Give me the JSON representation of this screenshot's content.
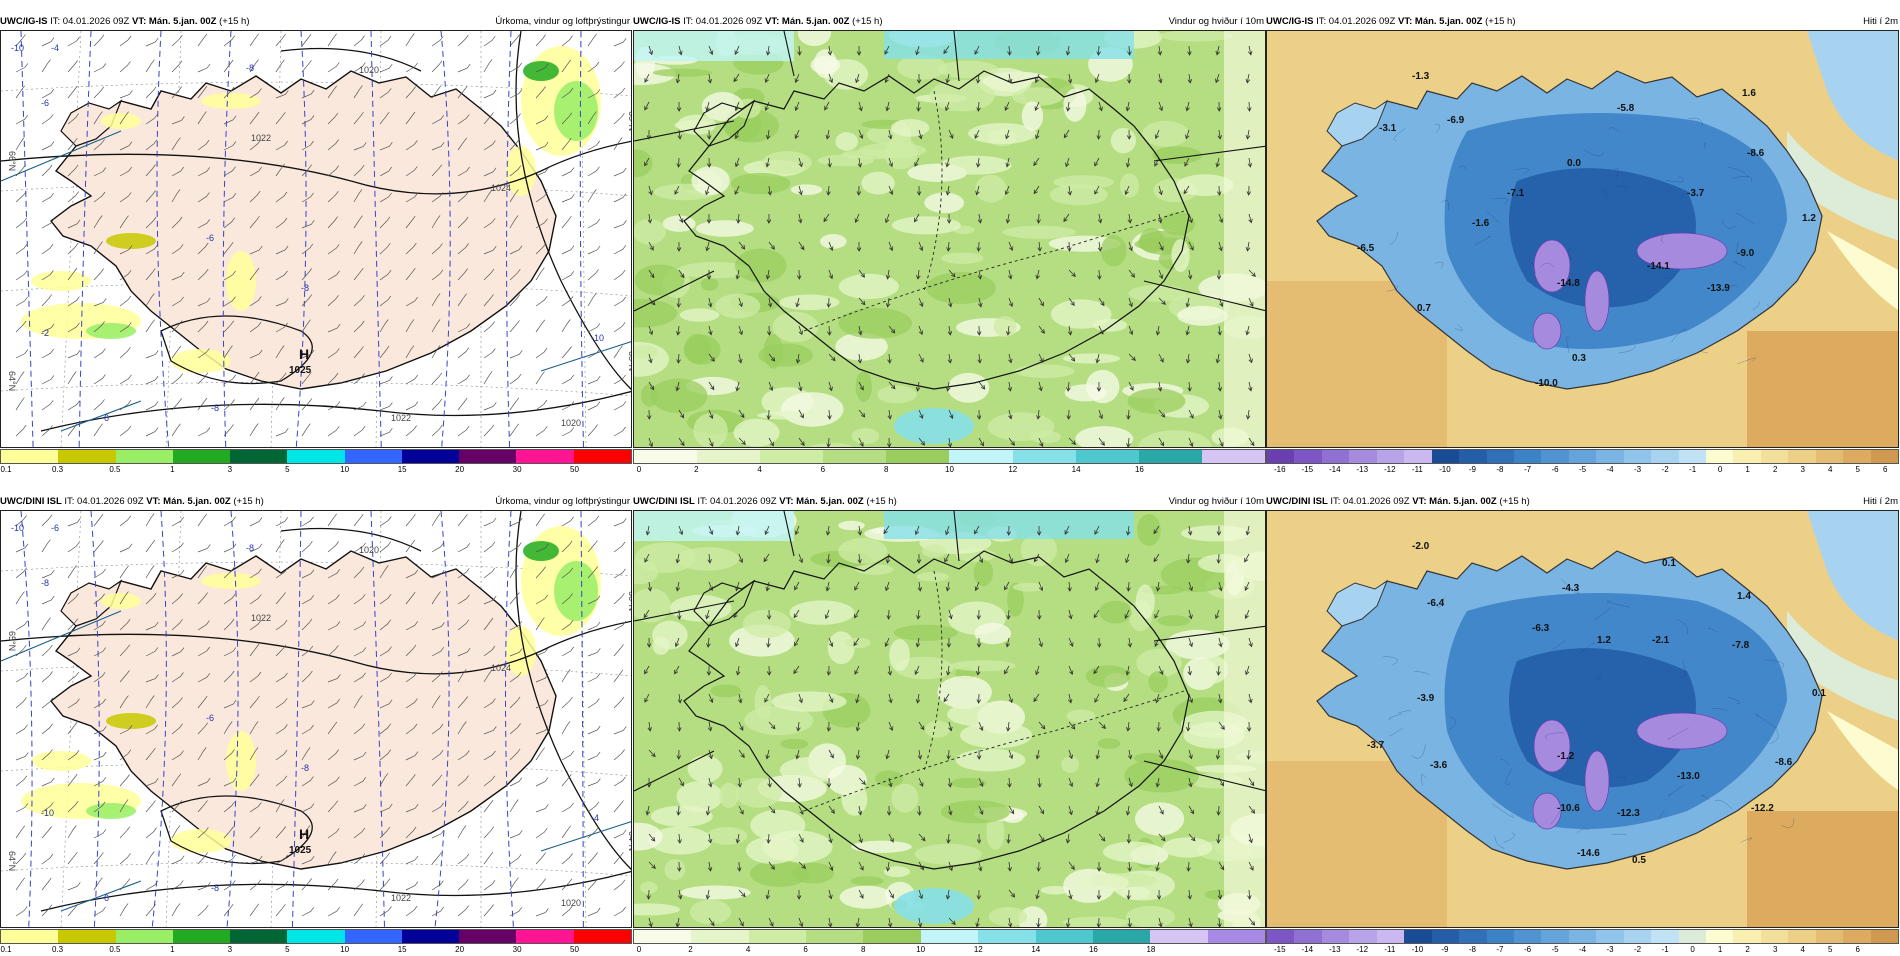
{
  "rows": [
    {
      "panels": [
        {
          "type": "precip",
          "model": "UWC/IG-IS",
          "it": "IT: 04.01.2026 09Z",
          "vt": "VT: Mán. 5.jan. 00Z",
          "lead": "(+15 h)",
          "title": "Úrkoma, vindur og loftþrýstingur",
          "high": {
            "letter": "H",
            "value": "1025"
          },
          "isobars": [
            "1020",
            "1022",
            "1024",
            "1022",
            "1020"
          ],
          "temp_isolines": [
            "-4",
            "-6",
            "-8",
            "-8",
            "-6",
            "-2",
            "-10",
            "-8",
            "-6",
            "-10"
          ],
          "lat_labels": [
            "65°N",
            "64°N",
            "66°N",
            "65°N"
          ],
          "legend": {
            "ticks": [
              "0.1",
              "0.3",
              "0.5",
              "1",
              "3",
              "5",
              "10",
              "15",
              "20",
              "30",
              "50"
            ],
            "colors": [
              "#ffff99",
              "#c8c800",
              "#99ee66",
              "#22aa22",
              "#006633",
              "#00e5e5",
              "#3366ff",
              "#000099",
              "#660066",
              "#ff1493",
              "#ff0000"
            ]
          }
        },
        {
          "type": "wind",
          "model": "UWC/IG-IS",
          "it": "IT: 04.01.2026 09Z",
          "vt": "VT: Mán. 5.jan. 00Z",
          "lead": "(+15 h)",
          "title": "Vindur og hviður í 10m",
          "legend": {
            "ticks": [
              "0",
              "2",
              "4",
              "6",
              "8",
              "10",
              "12",
              "14",
              "16"
            ],
            "colors": [
              "#f7fbe8",
              "#e6f5c9",
              "#cfeca5",
              "#b5de82",
              "#9acd5e",
              "#c2f5f7",
              "#86e0e8",
              "#4ec7cf",
              "#2aa8a8",
              "#d6c4f5"
            ]
          }
        },
        {
          "type": "temp",
          "model": "UWC/IG-IS",
          "it": "IT: 04.01.2026 09Z",
          "vt": "VT: Mán. 5.jan. 00Z",
          "lead": "(+15 h)",
          "title": "Hiti í 2m",
          "values": [
            "-1.3",
            "-6.9",
            "-3.1",
            "-5.8",
            "1.6",
            "-8.6",
            "0.0",
            "-7.1",
            "-3.7",
            "1.2",
            "-1.6",
            "-9.0",
            "-6.5",
            "-14.1",
            "-13.9",
            "-14.8",
            "0.7",
            "0.3",
            "-10.0"
          ],
          "legend": {
            "ticks": [
              "-16",
              "-15",
              "-14",
              "-13",
              "-12",
              "-11",
              "-10",
              "-9",
              "-8",
              "-7",
              "-6",
              "-5",
              "-4",
              "-3",
              "-2",
              "-1",
              "0",
              "1",
              "2",
              "3",
              "4",
              "5",
              "6"
            ],
            "colors": [
              "#6a3fb0",
              "#7d55c4",
              "#9070d2",
              "#a58ade",
              "#b9a3e8",
              "#cbb8f0",
              "#1a4c96",
              "#245ea8",
              "#2f70b8",
              "#3c82c6",
              "#4f93d0",
              "#64a4da",
              "#7ab4e2",
              "#90c4ea",
              "#a8d3f0",
              "#c0e2f4",
              "#fdfbd0",
              "#f8efb0",
              "#f2e09a",
              "#ecd088",
              "#e4bd72",
              "#dcab60",
              "#d09950"
            ]
          }
        }
      ]
    },
    {
      "panels": [
        {
          "type": "precip",
          "model": "UWC/DINI ISL",
          "it": "IT: 04.01.2026 09Z",
          "vt": "VT: Mán. 5.jan. 00Z",
          "lead": "(+15 h)",
          "title": "Úrkoma, vindur og loftþrýstingur",
          "high": {
            "letter": "H",
            "value": "1025"
          },
          "isobars": [
            "1020",
            "1022",
            "1024",
            "1022",
            "1020"
          ],
          "temp_isolines": [
            "-6",
            "-8",
            "-8",
            "-8",
            "-6",
            "-10",
            "-4",
            "-8",
            "-6",
            "-10"
          ],
          "lat_labels": [
            "66°N",
            "64°N",
            "65°N",
            "64°N"
          ],
          "legend": {
            "ticks": [
              "0.1",
              "0.3",
              "0.5",
              "1",
              "3",
              "5",
              "10",
              "15",
              "20",
              "30",
              "50"
            ],
            "colors": [
              "#ffff99",
              "#c8c800",
              "#99ee66",
              "#22aa22",
              "#006633",
              "#00e5e5",
              "#3366ff",
              "#000099",
              "#660066",
              "#ff1493",
              "#ff0000"
            ]
          }
        },
        {
          "type": "wind",
          "model": "UWC/DINI ISL",
          "it": "IT: 04.01.2026 09Z",
          "vt": "VT: Mán. 5.jan. 00Z",
          "lead": "(+15 h)",
          "title": "Vindur og hviður í 10m",
          "legend": {
            "ticks": [
              "0",
              "2",
              "4",
              "6",
              "8",
              "10",
              "12",
              "14",
              "16",
              "18"
            ],
            "colors": [
              "#f7fbe8",
              "#e6f5c9",
              "#cfeca5",
              "#b5de82",
              "#9acd5e",
              "#c2f5f7",
              "#86e0e8",
              "#4ec7cf",
              "#2aa8a8",
              "#d6c4f5",
              "#a88ae6"
            ]
          }
        },
        {
          "type": "temp",
          "model": "UWC/DINI ISL",
          "it": "IT: 04.01.2026 09Z",
          "vt": "VT: Mán. 5.jan. 00Z",
          "lead": "(+15 h)",
          "title": "Hiti í 2m",
          "values": [
            "-2.0",
            "-6.4",
            "-4.3",
            "0.1",
            "1.4",
            "-6.3",
            "1.2",
            "-2.1",
            "-7.8",
            "-3.9",
            "0.1",
            "-3.7",
            "-3.6",
            "-1.2",
            "-13.0",
            "-8.6",
            "-10.6",
            "-12.3",
            "-12.2",
            "-14.6",
            "0.5"
          ],
          "legend": {
            "ticks": [
              "-15",
              "-14",
              "-13",
              "-12",
              "-11",
              "-10",
              "-9",
              "-8",
              "-7",
              "-6",
              "-5",
              "-4",
              "-3",
              "-2",
              "-1",
              "0",
              "1",
              "2",
              "3",
              "4",
              "5",
              "6"
            ],
            "colors": [
              "#7d55c4",
              "#9070d2",
              "#a58ade",
              "#b9a3e8",
              "#cbb8f0",
              "#1a4c96",
              "#245ea8",
              "#2f70b8",
              "#3c82c6",
              "#4f93d0",
              "#64a4da",
              "#7ab4e2",
              "#90c4ea",
              "#a8d3f0",
              "#c0e2f4",
              "#dcecd8",
              "#fdfbd0",
              "#f8efb0",
              "#f2e09a",
              "#ecd088",
              "#e4bd72",
              "#dcab60",
              "#d09950"
            ]
          }
        }
      ]
    }
  ]
}
